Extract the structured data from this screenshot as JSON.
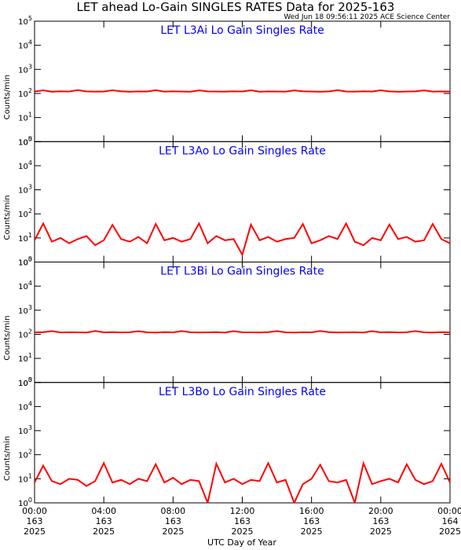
{
  "title": "LET ahead Lo-Gain SINGLES RATES Data for 2025-163",
  "subtitle": "Wed Jun 18 09:56:11 2025 ACE Science Center",
  "xlabel": "UTC Day of Year",
  "xlim": [
    0,
    24
  ],
  "xticks": [
    {
      "value": 0,
      "label": "00:00",
      "day": "163",
      "year": "2025"
    },
    {
      "value": 4,
      "label": "04:00",
      "day": "163",
      "year": "2025"
    },
    {
      "value": 8,
      "label": "08:00",
      "day": "163",
      "year": "2025"
    },
    {
      "value": 12,
      "label": "12:00",
      "day": "163",
      "year": "2025"
    },
    {
      "value": 16,
      "label": "16:00",
      "day": "163",
      "year": "2025"
    },
    {
      "value": 20,
      "label": "20:00",
      "day": "163",
      "year": "2025"
    },
    {
      "value": 24,
      "label": "00:00",
      "day": "164",
      "year": "2025"
    }
  ],
  "x": [
    0,
    0.5,
    1,
    1.5,
    2,
    2.5,
    3,
    3.5,
    4,
    4.5,
    5,
    5.5,
    6,
    6.5,
    7,
    7.5,
    8,
    8.5,
    9,
    9.5,
    10,
    10.5,
    11,
    11.5,
    12,
    12.5,
    13,
    13.5,
    14,
    14.5,
    15,
    15.5,
    16,
    16.5,
    17,
    17.5,
    18,
    18.5,
    19,
    19.5,
    20,
    20.5,
    21,
    21.5,
    22,
    22.5,
    23,
    23.5,
    24
  ],
  "chart_data": [
    {
      "type": "line",
      "title": "LET L3Ai Lo Gain Singles Rate",
      "ylabel": "Counts/min",
      "log": true,
      "ylim": [
        1,
        100000
      ],
      "yticks": [
        {
          "value": 1,
          "label": "10",
          "exp": "0"
        },
        {
          "value": 10,
          "label": "10",
          "exp": "1"
        },
        {
          "value": 100,
          "label": "10",
          "exp": "2"
        },
        {
          "value": 1000,
          "label": "10",
          "exp": "3"
        },
        {
          "value": 10000,
          "label": "10",
          "exp": "4"
        },
        {
          "value": 100000,
          "label": "10",
          "exp": "5"
        }
      ],
      "series": [
        {
          "color": "#ff0000",
          "values": [
            120,
            135,
            118,
            122,
            120,
            138,
            121,
            119,
            120,
            136,
            122,
            118,
            121,
            120,
            137,
            119,
            122,
            120,
            118,
            135,
            121,
            120,
            119,
            122,
            120,
            136,
            118,
            121,
            120,
            119,
            135,
            122,
            120,
            118,
            121,
            137,
            120,
            119,
            122,
            120,
            136,
            121,
            118,
            120,
            122,
            135,
            119,
            121,
            120
          ]
        }
      ]
    },
    {
      "type": "line",
      "title": "LET L3Ao Lo Gain Singles Rate",
      "ylabel": "Counts/min",
      "log": true,
      "ylim": [
        1,
        100000
      ],
      "yticks": [
        {
          "value": 1,
          "label": "10",
          "exp": "0"
        },
        {
          "value": 10,
          "label": "10",
          "exp": "1"
        },
        {
          "value": 100,
          "label": "10",
          "exp": "2"
        },
        {
          "value": 1000,
          "label": "10",
          "exp": "3"
        },
        {
          "value": 10000,
          "label": "10",
          "exp": "4"
        },
        {
          "value": 100000,
          "label": "10",
          "exp": "5"
        }
      ],
      "series": [
        {
          "color": "#ff0000",
          "values": [
            8,
            40,
            7,
            10,
            6,
            9,
            12,
            5,
            8,
            35,
            9,
            7,
            11,
            6,
            38,
            8,
            10,
            7,
            9,
            40,
            6,
            12,
            8,
            9,
            2,
            36,
            8,
            11,
            7,
            9,
            10,
            38,
            6,
            8,
            12,
            9,
            40,
            7,
            5,
            10,
            8,
            36,
            9,
            11,
            7,
            8,
            38,
            9,
            6
          ]
        }
      ]
    },
    {
      "type": "line",
      "title": "LET L3Bi Lo Gain Singles Rate",
      "ylabel": "Counts/min",
      "log": true,
      "ylim": [
        1,
        100000
      ],
      "yticks": [
        {
          "value": 1,
          "label": "10",
          "exp": "0"
        },
        {
          "value": 10,
          "label": "10",
          "exp": "1"
        },
        {
          "value": 100,
          "label": "10",
          "exp": "2"
        },
        {
          "value": 1000,
          "label": "10",
          "exp": "3"
        },
        {
          "value": 10000,
          "label": "10",
          "exp": "4"
        },
        {
          "value": 100000,
          "label": "10",
          "exp": "5"
        }
      ],
      "series": [
        {
          "color": "#ff0000",
          "values": [
            120,
            122,
            136,
            119,
            121,
            120,
            118,
            137,
            120,
            122,
            119,
            121,
            135,
            120,
            118,
            122,
            120,
            136,
            121,
            119,
            120,
            122,
            118,
            135,
            121,
            120,
            119,
            122,
            136,
            120,
            118,
            121,
            120,
            137,
            122,
            119,
            120,
            121,
            118,
            135,
            120,
            122,
            119,
            121,
            136,
            120,
            118,
            122,
            120
          ]
        }
      ]
    },
    {
      "type": "line",
      "title": "LET L3Bo Lo Gain Singles Rate",
      "ylabel": "Counts/min",
      "log": true,
      "ylim": [
        1,
        100000
      ],
      "yticks": [
        {
          "value": 1,
          "label": "10",
          "exp": "0"
        },
        {
          "value": 10,
          "label": "10",
          "exp": "1"
        },
        {
          "value": 100,
          "label": "10",
          "exp": "2"
        },
        {
          "value": 1000,
          "label": "10",
          "exp": "3"
        },
        {
          "value": 10000,
          "label": "10",
          "exp": "4"
        },
        {
          "value": 100000,
          "label": "10",
          "exp": "5"
        }
      ],
      "series": [
        {
          "color": "#ff0000",
          "values": [
            7,
            35,
            8,
            6,
            10,
            9,
            5,
            8,
            45,
            7,
            9,
            6,
            10,
            8,
            40,
            7,
            11,
            6,
            9,
            8,
            1,
            42,
            7,
            10,
            6,
            9,
            8,
            45,
            7,
            9,
            1,
            6,
            10,
            38,
            8,
            7,
            9,
            1,
            44,
            6,
            8,
            10,
            7,
            40,
            9,
            6,
            8,
            42,
            7
          ]
        }
      ]
    }
  ]
}
